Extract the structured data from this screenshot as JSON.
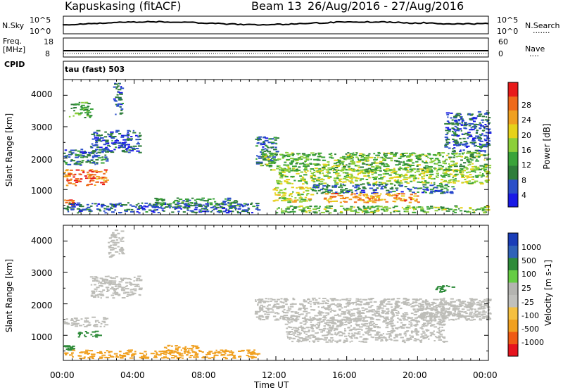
{
  "header": {
    "station": "Kapuskasing (fitACF)",
    "beam": "Beam 13",
    "dates": "26/Aug/2016 - 27/Aug/2016"
  },
  "panels": {
    "nsky": {
      "label": "N.Sky",
      "left_ticks": [
        "10^5",
        "10^0"
      ],
      "right_ticks": [
        "10^5",
        "10^0"
      ],
      "right_label": "N.Search",
      "right_legend": "......."
    },
    "freq": {
      "label_line1": "Freq.",
      "label_line2": "[MHz]",
      "left_ticks": [
        "18",
        "8"
      ],
      "right_ticks": [
        "60",
        "0"
      ],
      "right_label": "Nave",
      "right_legend": "....",
      "cpid_label": "CPID",
      "cpid_text": "tau (fast) 503"
    }
  },
  "colors": {
    "power": [
      "#1a1ae6",
      "#2b4fc9",
      "#2e7d3a",
      "#3aa33a",
      "#8ccf3a",
      "#e6d21a",
      "#f0a020",
      "#ee6a1a",
      "#e81a1a"
    ],
    "velocity": [
      "#e6141e",
      "#ef5a14",
      "#f0a020",
      "#f5c040",
      "#c0c0bc",
      "#b4b4b0",
      "#66cc44",
      "#2e8b3a",
      "#2f62b8",
      "#1a3db8"
    ],
    "gray": "#bdbdb8"
  },
  "chart_data": [
    {
      "type": "heatmap",
      "title": "Power",
      "ylabel": "Slant Range [km]",
      "y_ticks": [
        1000,
        2000,
        3000,
        4000
      ],
      "ylim": [
        200,
        4500
      ],
      "colorbar": {
        "label": "Power [dB]",
        "ticks": [
          "4",
          "8",
          "12",
          "16",
          "20",
          "24",
          "28"
        ],
        "range": [
          0,
          32
        ]
      },
      "scatter_regions": [
        {
          "t": [
            0.0,
            2.4
          ],
          "r": [
            1150,
            1650
          ],
          "value": 26
        },
        {
          "t": [
            0.0,
            0.5
          ],
          "r": [
            500,
            700
          ],
          "value": 28
        },
        {
          "t": [
            0.0,
            2.6
          ],
          "r": [
            1800,
            2300
          ],
          "value": 8
        },
        {
          "t": [
            1.5,
            4.3
          ],
          "r": [
            2200,
            2900
          ],
          "value": 6
        },
        {
          "t": [
            0.3,
            1.5
          ],
          "r": [
            3300,
            3800
          ],
          "value": 12
        },
        {
          "t": [
            2.8,
            3.3
          ],
          "r": [
            3400,
            4400
          ],
          "value": 6
        },
        {
          "t": [
            0.0,
            11.0
          ],
          "r": [
            280,
            600
          ],
          "value": 6
        },
        {
          "t": [
            5.0,
            9.8
          ],
          "r": [
            450,
            750
          ],
          "value": 10
        },
        {
          "t": [
            10.8,
            12.0
          ],
          "r": [
            1800,
            2700
          ],
          "value": 8
        },
        {
          "t": [
            11.8,
            14.0
          ],
          "r": [
            600,
            1100
          ],
          "value": 18
        },
        {
          "t": [
            12.0,
            24.0
          ],
          "r": [
            1200,
            1700
          ],
          "value": 16
        },
        {
          "t": [
            14.0,
            22.0
          ],
          "r": [
            900,
            1200
          ],
          "value": 8
        },
        {
          "t": [
            14.5,
            20.0
          ],
          "r": [
            600,
            900
          ],
          "value": 24
        },
        {
          "t": [
            11.0,
            24.0
          ],
          "r": [
            1600,
            2200
          ],
          "value": 14
        },
        {
          "t": [
            21.5,
            24.0
          ],
          "r": [
            2200,
            3500
          ],
          "value": 6
        },
        {
          "t": [
            12.0,
            24.0
          ],
          "r": [
            280,
            500
          ],
          "value": 14
        }
      ]
    },
    {
      "type": "heatmap",
      "title": "Velocity",
      "ylabel": "Slant Range [km]",
      "y_ticks": [
        1000,
        2000,
        3000,
        4000
      ],
      "ylim": [
        200,
        4500
      ],
      "colorbar": {
        "label": "Velocity [m s-1]",
        "ticks": [
          "-1000",
          "-500",
          "-100",
          "-25",
          "25",
          "100",
          "500",
          "1000"
        ]
      },
      "scatter_regions": [
        {
          "t": [
            0.0,
            2.4
          ],
          "r": [
            1300,
            1600
          ],
          "value": 0
        },
        {
          "t": [
            0.8,
            2.0
          ],
          "r": [
            950,
            1150
          ],
          "value": 200
        },
        {
          "t": [
            0.0,
            0.5
          ],
          "r": [
            550,
            700
          ],
          "value": 300
        },
        {
          "t": [
            1.5,
            4.3
          ],
          "r": [
            2200,
            2900
          ],
          "value": 0
        },
        {
          "t": [
            2.5,
            3.3
          ],
          "r": [
            3500,
            4400
          ],
          "value": 0
        },
        {
          "t": [
            5.5,
            7.5
          ],
          "r": [
            450,
            700
          ],
          "value": -150
        },
        {
          "t": [
            0.0,
            11.0
          ],
          "r": [
            280,
            550
          ],
          "value": -150
        },
        {
          "t": [
            10.8,
            24.0
          ],
          "r": [
            1500,
            2200
          ],
          "value": 0
        },
        {
          "t": [
            12.5,
            21.5
          ],
          "r": [
            800,
            1600
          ],
          "value": 0
        },
        {
          "t": [
            20.0,
            24.0
          ],
          "r": [
            1600,
            2100
          ],
          "value": 0
        },
        {
          "t": [
            21.0,
            22.0
          ],
          "r": [
            2400,
            2600
          ],
          "value": 120
        }
      ]
    },
    {
      "type": "line",
      "title": "N.Sky",
      "x": [
        0,
        24
      ],
      "values": [
        4.0,
        4.0
      ]
    }
  ],
  "x_axis": {
    "label": "Time UT",
    "ticks": [
      "00:00",
      "04:00",
      "08:00",
      "12:00",
      "16:00",
      "20:00",
      "00:00"
    ],
    "range_hours": [
      0,
      24
    ]
  }
}
